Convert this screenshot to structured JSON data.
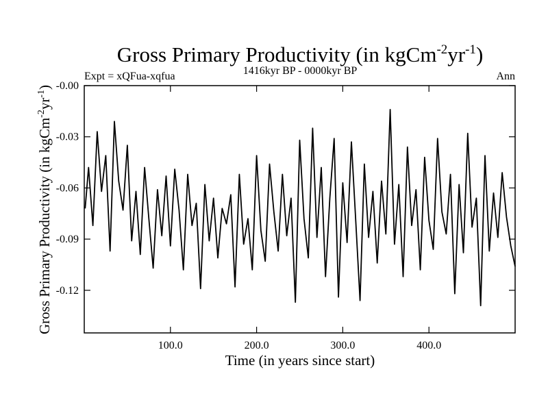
{
  "chart_data": {
    "type": "line",
    "title": {
      "main": "Gross Primary Productivity (in kgCm",
      "sup1": "-2",
      "mid": "yr",
      "sup2": "-1",
      "end": ")"
    },
    "subtitle_left": "Expt = xQFua-xqfua",
    "subtitle_center": "1416kyr BP - 0000kyr BP",
    "subtitle_right": "Ann",
    "xlabel": "Time (in years since start)",
    "ylabel": {
      "main": "Gross Primary Productivity (in kgCm",
      "sup1": "-2",
      "mid": "yr",
      "sup2": "-1",
      "end": ")"
    },
    "xlim": [
      0,
      500
    ],
    "ylim": [
      -0.145,
      0.0
    ],
    "xticks": [
      100,
      200,
      300,
      400
    ],
    "xtick_labels": [
      "100.0",
      "200.0",
      "300.0",
      "400.0"
    ],
    "yticks": [
      -0.0,
      -0.03,
      -0.06,
      -0.09,
      -0.12
    ],
    "ytick_labels": [
      "-0.00",
      "-0.03",
      "-0.06",
      "-0.09",
      "-0.12"
    ],
    "grid": false,
    "series": [
      {
        "name": "Gross Primary Productivity",
        "color": "#000000",
        "x": [
          1,
          5,
          10,
          15,
          20,
          25,
          30,
          35,
          40,
          45,
          50,
          55,
          60,
          65,
          70,
          75,
          80,
          85,
          90,
          95,
          100,
          105,
          110,
          115,
          120,
          125,
          130,
          135,
          140,
          145,
          150,
          155,
          160,
          165,
          170,
          175,
          180,
          185,
          190,
          195,
          200,
          205,
          210,
          215,
          220,
          225,
          230,
          235,
          240,
          245,
          250,
          255,
          260,
          265,
          270,
          275,
          280,
          285,
          290,
          295,
          300,
          305,
          310,
          315,
          320,
          325,
          330,
          335,
          340,
          345,
          350,
          355,
          360,
          365,
          370,
          375,
          380,
          385,
          390,
          395,
          400,
          405,
          410,
          415,
          420,
          425,
          430,
          435,
          440,
          445,
          450,
          455,
          460,
          465,
          470,
          475,
          480,
          485,
          490,
          495,
          500
        ],
        "values": [
          -0.072,
          -0.048,
          -0.082,
          -0.027,
          -0.062,
          -0.041,
          -0.097,
          -0.021,
          -0.056,
          -0.073,
          -0.035,
          -0.091,
          -0.062,
          -0.099,
          -0.048,
          -0.078,
          -0.107,
          -0.061,
          -0.088,
          -0.053,
          -0.094,
          -0.049,
          -0.073,
          -0.108,
          -0.052,
          -0.082,
          -0.069,
          -0.119,
          -0.058,
          -0.091,
          -0.066,
          -0.101,
          -0.072,
          -0.081,
          -0.064,
          -0.118,
          -0.052,
          -0.093,
          -0.078,
          -0.108,
          -0.041,
          -0.085,
          -0.103,
          -0.046,
          -0.074,
          -0.097,
          -0.052,
          -0.088,
          -0.066,
          -0.127,
          -0.032,
          -0.078,
          -0.101,
          -0.025,
          -0.089,
          -0.048,
          -0.112,
          -0.066,
          -0.031,
          -0.124,
          -0.057,
          -0.092,
          -0.033,
          -0.079,
          -0.126,
          -0.046,
          -0.089,
          -0.062,
          -0.104,
          -0.056,
          -0.087,
          -0.014,
          -0.093,
          -0.058,
          -0.112,
          -0.036,
          -0.082,
          -0.061,
          -0.108,
          -0.042,
          -0.079,
          -0.096,
          -0.031,
          -0.074,
          -0.087,
          -0.052,
          -0.122,
          -0.058,
          -0.098,
          -0.028,
          -0.083,
          -0.066,
          -0.129,
          -0.041,
          -0.097,
          -0.063,
          -0.089,
          -0.051,
          -0.077,
          -0.094,
          -0.106
        ]
      }
    ]
  }
}
